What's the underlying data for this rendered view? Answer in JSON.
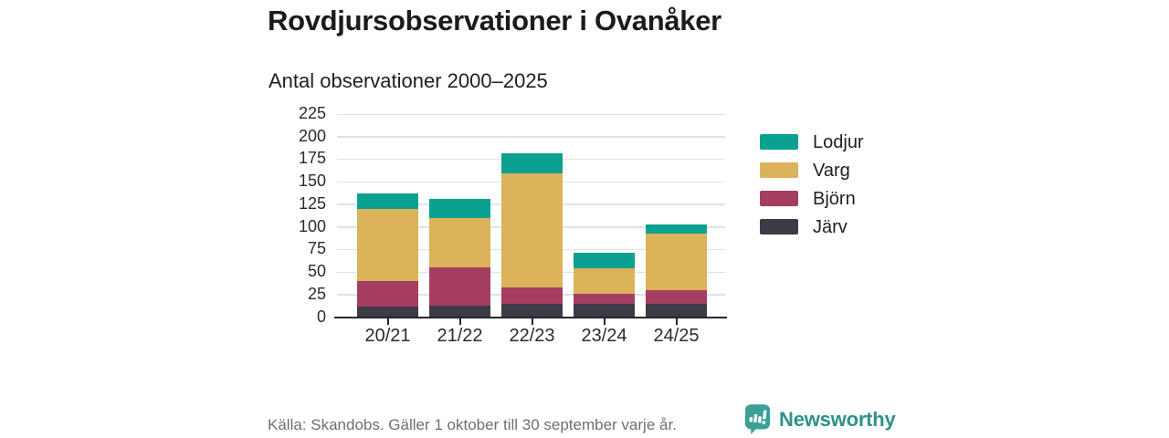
{
  "header": {
    "title": "Rovdjursobservationer i Ovanåker",
    "subtitle": "Antal observationer 2000–2025"
  },
  "chart_data": {
    "type": "bar",
    "stacked": true,
    "title": "Rovdjursobservationer i Ovanåker",
    "subtitle": "Antal observationer 2000–2025",
    "categories": [
      "20/21",
      "21/22",
      "22/23",
      "23/24",
      "24/25"
    ],
    "series": [
      {
        "name": "Järv",
        "color": "#3c3b46",
        "values": [
          11,
          12,
          14,
          14,
          14
        ]
      },
      {
        "name": "Björn",
        "color": "#a53c62",
        "values": [
          28,
          43,
          18,
          11,
          15
        ]
      },
      {
        "name": "Varg",
        "color": "#dcb25a",
        "values": [
          80,
          54,
          127,
          29,
          63
        ]
      },
      {
        "name": "Lodjur",
        "color": "#0aa191",
        "values": [
          18,
          21,
          22,
          17,
          10
        ]
      }
    ],
    "totals": [
      137,
      130,
      181,
      71,
      102
    ],
    "xlabel": "",
    "ylabel": "",
    "ylim": [
      0,
      225
    ],
    "ytick_step": 25,
    "yticks": [
      0,
      25,
      50,
      75,
      100,
      125,
      150,
      175,
      200,
      225
    ],
    "grid": true,
    "legend_position": "right",
    "legend_order": [
      "Lodjur",
      "Varg",
      "Björn",
      "Järv"
    ]
  },
  "footer": {
    "source": "Källa: Skandobs. Gäller 1 oktober till 30 september varje år.",
    "brand": "Newsworthy"
  },
  "colors": {
    "lodjur_teal": "#0aa191",
    "varg_gold": "#dcb25a",
    "bjorn_berry": "#a53c62",
    "jarv_charcoal": "#3c3b46",
    "grid": "#e2e2e2",
    "axis": "#26252d",
    "text_dark": "#1f1f1f",
    "footer_gray": "#6f6f6f",
    "brand_teal": "#2d918b",
    "logo_teal": "#3aa096"
  }
}
